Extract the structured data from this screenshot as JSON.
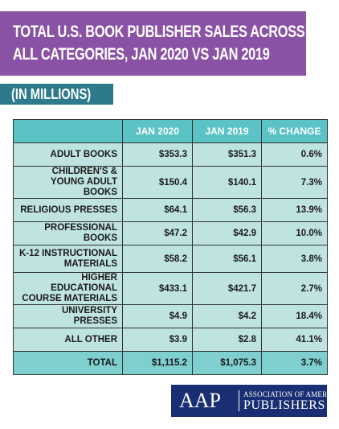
{
  "header": {
    "title_line1": "TOTAL U.S. BOOK PUBLISHER SALES ACROSS",
    "title_line2": "ALL CATEGORIES, JAN 2020 VS  JAN 2019",
    "subtitle": "(IN MILLIONS)"
  },
  "colors": {
    "title_band": "#8a52a4",
    "subtitle_band": "#2e7a8d",
    "header_row": "#5bc2c6",
    "body_row": "#bfe3e1",
    "total_row": "#7fcfcf",
    "logo_band": "#1a2f73"
  },
  "chart_data": {
    "type": "table",
    "columns": [
      "",
      "JAN 2020",
      "JAN 2019",
      "% CHANGE"
    ],
    "rows": [
      {
        "category": "ADULT BOOKS",
        "jan2020": "$353.3",
        "jan2019": "$351.3",
        "change": "0.6%"
      },
      {
        "category": "CHILDREN'S & YOUNG ADULT BOOKS",
        "jan2020": "$150.4",
        "jan2019": "$140.1",
        "change": "7.3%"
      },
      {
        "category": "RELIGIOUS PRESSES",
        "jan2020": "$64.1",
        "jan2019": "$56.3",
        "change": "13.9%"
      },
      {
        "category": "PROFESSIONAL BOOKS",
        "jan2020": "$47.2",
        "jan2019": "$42.9",
        "change": "10.0%"
      },
      {
        "category": "K-12 INSTRUCTIONAL MATERIALS",
        "jan2020": "$58.2",
        "jan2019": "$56.1",
        "change": "3.8%"
      },
      {
        "category": "HIGHER EDUCATIONAL COURSE MATERIALS",
        "jan2020": "$433.1",
        "jan2019": "$421.7",
        "change": "2.7%"
      },
      {
        "category": "UNIVERSITY PRESSES",
        "jan2020": "$4.9",
        "jan2019": "$4.2",
        "change": "18.4%"
      },
      {
        "category": "ALL OTHER",
        "jan2020": "$3.9",
        "jan2019": "$2.8",
        "change": "41.1%"
      }
    ],
    "total": {
      "category": "TOTAL",
      "jan2020": "$1,115.2",
      "jan2019": "$1,075.3",
      "change": "3.7%"
    }
  },
  "logo": {
    "mark": "AAP",
    "line1": "ASSOCIATION OF AMERICAN",
    "line2": "PUBLISHERS"
  }
}
